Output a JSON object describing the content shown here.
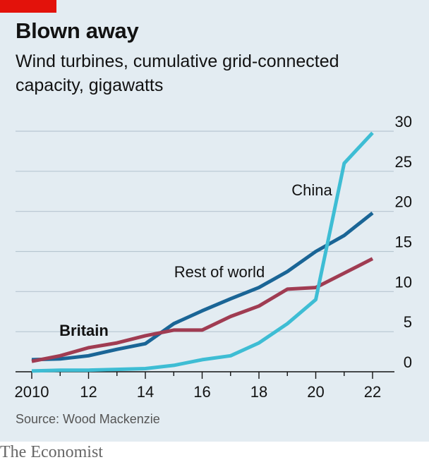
{
  "header": {
    "title": "Blown away",
    "subtitle": "Wind turbines, cumulative grid-connected capacity, gigawatts"
  },
  "source": "Source: Wood Mackenzie",
  "footer": {
    "brand": "The Economist"
  },
  "colors": {
    "background": "#e3ecf2",
    "accent_red": "#e3120b",
    "china": "#3ebdd4",
    "rest_of_world": "#1a6596",
    "britain": "#a03c52",
    "grid": "#b7c6d1"
  },
  "chart_data": {
    "type": "line",
    "title": "Blown away",
    "subtitle": "Wind turbines, cumulative grid-connected capacity, gigawatts",
    "x": [
      2010,
      2011,
      2012,
      2013,
      2014,
      2015,
      2016,
      2017,
      2018,
      2019,
      2020,
      2021,
      2022
    ],
    "x_ticks": [
      2010,
      2012,
      2014,
      2016,
      2018,
      2020,
      2022
    ],
    "x_tick_labels": [
      "2010",
      "12",
      "14",
      "16",
      "18",
      "20",
      "22"
    ],
    "y_ticks": [
      0,
      5,
      10,
      15,
      20,
      25,
      30
    ],
    "y_tick_labels": [
      "0",
      "5",
      "10",
      "15",
      "20",
      "25",
      "30"
    ],
    "ylim": [
      0,
      30
    ],
    "xlim": [
      2010,
      2022
    ],
    "grid": true,
    "y_axis_position": "right",
    "series": [
      {
        "name": "China",
        "color": "#3ebdd4",
        "bold": false,
        "values": [
          0.1,
          0.2,
          0.2,
          0.3,
          0.4,
          0.8,
          1.5,
          2.0,
          3.6,
          6.0,
          9.0,
          26.0,
          29.8
        ]
      },
      {
        "name": "Rest of world",
        "color": "#1a6596",
        "bold": false,
        "values": [
          1.5,
          1.6,
          2.0,
          2.8,
          3.5,
          6.0,
          7.6,
          9.1,
          10.5,
          12.5,
          15.0,
          17.0,
          19.8
        ]
      },
      {
        "name": "Britain",
        "color": "#a03c52",
        "bold": true,
        "values": [
          1.3,
          2.0,
          3.0,
          3.6,
          4.5,
          5.2,
          5.2,
          6.9,
          8.2,
          10.3,
          10.5,
          12.3,
          14.1
        ]
      }
    ]
  }
}
